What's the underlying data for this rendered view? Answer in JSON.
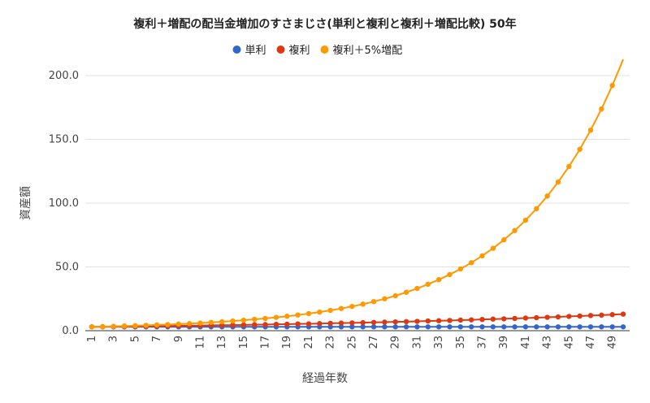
{
  "chart_data": {
    "type": "line",
    "title": "複利＋増配の配当金増加のすさまじさ(単利と複利と複利＋増配比較) 50年",
    "xlabel": "経過年数",
    "ylabel": "資産額",
    "ylim": [
      0,
      200
    ],
    "yticks": [
      "0.0",
      "50.0",
      "100.0",
      "150.0",
      "200.0"
    ],
    "xticks": [
      "1",
      "3",
      "5",
      "7",
      "9",
      "11",
      "13",
      "15",
      "17",
      "19",
      "21",
      "23",
      "25",
      "27",
      "29",
      "31",
      "33",
      "35",
      "37",
      "39",
      "41",
      "43",
      "45",
      "47",
      "49"
    ],
    "x": [
      1,
      2,
      3,
      4,
      5,
      6,
      7,
      8,
      9,
      10,
      11,
      12,
      13,
      14,
      15,
      16,
      17,
      18,
      19,
      20,
      21,
      22,
      23,
      24,
      25,
      26,
      27,
      28,
      29,
      30,
      31,
      32,
      33,
      34,
      35,
      36,
      37,
      38,
      39,
      40,
      41,
      42,
      43,
      44,
      45,
      46,
      47,
      48,
      49,
      50
    ],
    "grid": true,
    "legend_position": "top",
    "series": [
      {
        "name": "単利",
        "color": "#3366cc",
        "values": [
          3.0,
          3.0,
          3.0,
          3.0,
          3.0,
          3.0,
          3.0,
          3.0,
          3.0,
          3.0,
          3.0,
          3.0,
          3.0,
          3.0,
          3.0,
          3.0,
          3.0,
          3.0,
          3.0,
          3.0,
          3.0,
          3.0,
          3.0,
          3.0,
          3.0,
          3.0,
          3.0,
          3.0,
          3.0,
          3.0,
          3.0,
          3.0,
          3.0,
          3.0,
          3.0,
          3.0,
          3.0,
          3.0,
          3.0,
          3.0,
          3.0,
          3.0,
          3.0,
          3.0,
          3.0,
          3.0,
          3.0,
          3.0,
          3.0,
          3.0
        ]
      },
      {
        "name": "複利",
        "color": "#dc3912",
        "values": [
          3.0,
          3.1,
          3.2,
          3.3,
          3.4,
          3.5,
          3.6,
          3.7,
          3.8,
          3.9,
          4.0,
          4.2,
          4.3,
          4.4,
          4.5,
          4.7,
          4.8,
          5.0,
          5.1,
          5.3,
          5.4,
          5.6,
          5.8,
          6.0,
          6.1,
          6.3,
          6.5,
          6.7,
          6.9,
          7.1,
          7.3,
          7.6,
          7.8,
          8.0,
          8.3,
          8.5,
          8.8,
          9.1,
          9.3,
          9.6,
          9.9,
          10.2,
          10.5,
          10.8,
          11.2,
          11.5,
          11.9,
          12.2,
          12.6,
          13.0
        ]
      },
      {
        "name": "複利＋5%増配",
        "color": "#ff9900",
        "values": [
          3.0,
          3.2,
          3.4,
          3.7,
          3.9,
          4.2,
          4.5,
          4.8,
          5.2,
          5.6,
          6.0,
          6.5,
          7.0,
          7.6,
          8.2,
          8.9,
          9.6,
          10.4,
          11.3,
          12.3,
          13.4,
          14.6,
          15.9,
          17.4,
          19.0,
          20.8,
          22.8,
          25.0,
          27.4,
          30.1,
          33.1,
          36.4,
          40.0,
          44.0,
          48.4,
          53.3,
          58.7,
          64.6,
          71.2,
          78.5,
          86.6,
          95.6,
          105.5,
          116.5,
          128.7,
          142.2,
          157.2,
          173.8,
          192.2,
          212.7
        ]
      }
    ]
  }
}
